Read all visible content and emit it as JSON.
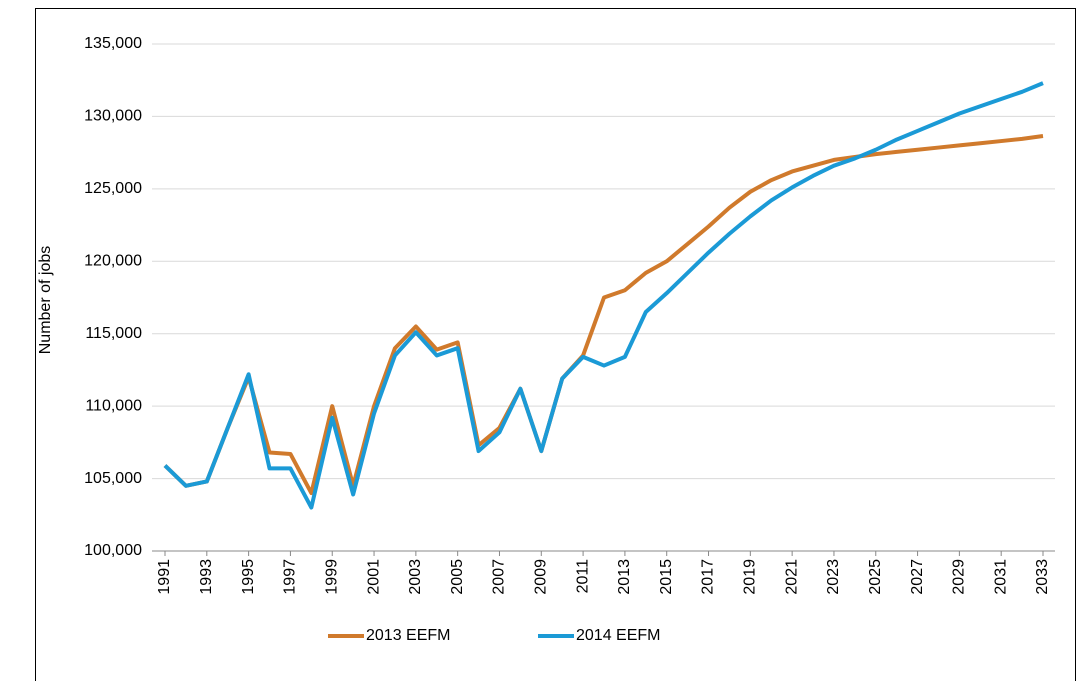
{
  "chart_data": {
    "type": "line",
    "y_label": "Number of jobs",
    "x": [
      1991,
      1992,
      1993,
      1994,
      1995,
      1996,
      1997,
      1998,
      1999,
      2000,
      2001,
      2002,
      2003,
      2004,
      2005,
      2006,
      2007,
      2008,
      2009,
      2010,
      2011,
      2012,
      2013,
      2014,
      2015,
      2016,
      2017,
      2018,
      2019,
      2020,
      2021,
      2022,
      2023,
      2024,
      2025,
      2026,
      2027,
      2028,
      2029,
      2030,
      2031,
      2032,
      2033
    ],
    "series": [
      {
        "name": "2013 EEFM",
        "color": "#d07a2c",
        "values": [
          105900,
          104500,
          104800,
          108500,
          112000,
          106800,
          106700,
          104000,
          110000,
          104500,
          110000,
          114000,
          115500,
          113900,
          114400,
          107300,
          108500,
          111200,
          106900,
          111900,
          113500,
          117500,
          118000,
          119200,
          120000,
          121200,
          122400,
          123700,
          124800,
          125600,
          126200,
          126600,
          127000,
          127200,
          127400,
          127550,
          127700,
          127850,
          128000,
          128150,
          128300,
          128450,
          128650
        ]
      },
      {
        "name": "2014 EEFM",
        "color": "#1b9ad6",
        "values": [
          105900,
          104500,
          104800,
          108500,
          112200,
          105700,
          105700,
          103000,
          109200,
          103900,
          109500,
          113500,
          115100,
          113500,
          114000,
          106900,
          108200,
          111200,
          106900,
          111900,
          113400,
          112800,
          113400,
          116500,
          117800,
          119200,
          120600,
          121900,
          123100,
          124200,
          125100,
          125900,
          126600,
          127100,
          127700,
          128400,
          129000,
          129600,
          130200,
          130700,
          131200,
          131700,
          132300
        ]
      }
    ],
    "xlim": [
      1991,
      2033
    ],
    "xticks": [
      1991,
      1993,
      1995,
      1997,
      1999,
      2001,
      2003,
      2005,
      2007,
      2009,
      2011,
      2013,
      2015,
      2017,
      2019,
      2021,
      2023,
      2025,
      2027,
      2029,
      2031,
      2033
    ],
    "ylim": [
      100000,
      135000
    ],
    "yticks": [
      {
        "value": 100000,
        "label": "100,000"
      },
      {
        "value": 105000,
        "label": "105,000"
      },
      {
        "value": 110000,
        "label": "110,000"
      },
      {
        "value": 115000,
        "label": "115,000"
      },
      {
        "value": 120000,
        "label": "120,000"
      },
      {
        "value": 125000,
        "label": "125,000"
      },
      {
        "value": 130000,
        "label": "130,000"
      },
      {
        "value": 135000,
        "label": "135,000"
      }
    ],
    "grid": true,
    "legend": "bottom"
  }
}
